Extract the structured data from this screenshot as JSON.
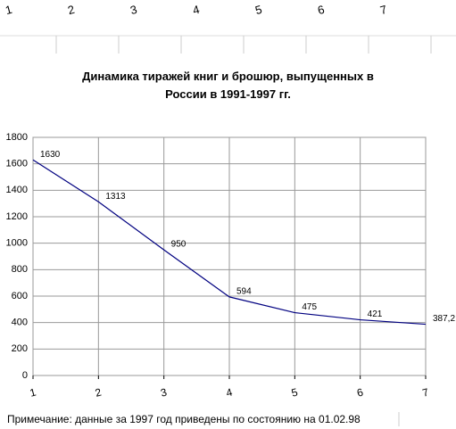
{
  "header": {
    "columns": [
      "1",
      "2",
      "3",
      "4",
      "5",
      "6",
      "7"
    ]
  },
  "chart_data": {
    "type": "line",
    "title": "Динамика тиражей книг и брошюр, выпущенных в России в 1991-1997 гг.",
    "x": [
      1,
      2,
      3,
      4,
      5,
      6,
      7
    ],
    "series": [
      {
        "color": "#000080",
        "values": [
          1630,
          1313,
          950,
          594,
          475,
          421,
          387.2
        ],
        "value_labels": [
          "1630",
          "1313",
          "950",
          "594",
          "475",
          "421",
          "387,2"
        ]
      }
    ],
    "xlim": [
      1,
      7
    ],
    "xticks": [
      1,
      2,
      3,
      4,
      5,
      6,
      7
    ],
    "ylim": [
      0,
      1800
    ],
    "yticks": [
      0,
      200,
      400,
      600,
      800,
      1000,
      1200,
      1400,
      1600,
      1800
    ],
    "grid": true
  },
  "note": "Примечание: данные за 1997 год приведены по состоянию на 01.02.98"
}
